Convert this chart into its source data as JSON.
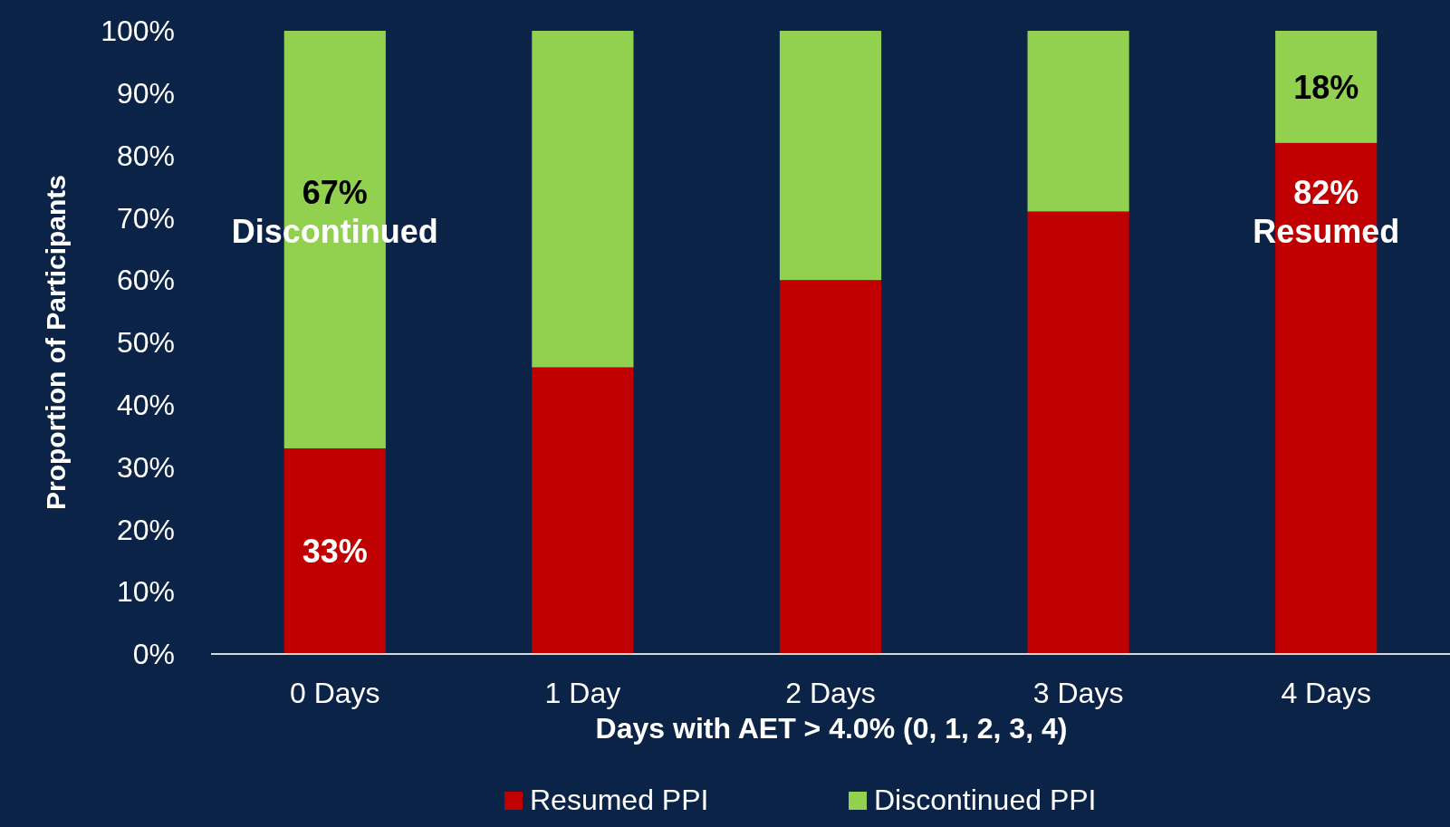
{
  "chart_data": {
    "type": "bar",
    "stacked": true,
    "xlabel": "Days with AET > 4.0% (0, 1, 2, 3, 4)",
    "ylabel": "Proportion of Participants",
    "categories": [
      "0 Days",
      "1 Day",
      "2 Days",
      "3 Days",
      "4 Days"
    ],
    "series": [
      {
        "name": "Resumed PPI",
        "color": "#c00000",
        "values": [
          33,
          46,
          60,
          71,
          82
        ],
        "value_labels": [
          "33%",
          null,
          null,
          null,
          "82%"
        ]
      },
      {
        "name": "Discontinued PPI",
        "color": "#92d050",
        "values": [
          67,
          54,
          40,
          29,
          18
        ],
        "value_labels": [
          "67%",
          null,
          null,
          null,
          "18%"
        ]
      }
    ],
    "ylim": [
      0,
      100
    ],
    "yticks": [
      {
        "value": 0,
        "label": "0%"
      },
      {
        "value": 10,
        "label": "10%"
      },
      {
        "value": 20,
        "label": "20%"
      },
      {
        "value": 30,
        "label": "30%"
      },
      {
        "value": 40,
        "label": "40%"
      },
      {
        "value": 50,
        "label": "50%"
      },
      {
        "value": 60,
        "label": "60%"
      },
      {
        "value": 70,
        "label": "70%"
      },
      {
        "value": 80,
        "label": "80%"
      },
      {
        "value": 90,
        "label": "90%"
      },
      {
        "value": 100,
        "label": "100%"
      }
    ],
    "annotations": [
      "Discontinued",
      "Resumed"
    ],
    "legend": "bottom",
    "grid": false
  }
}
